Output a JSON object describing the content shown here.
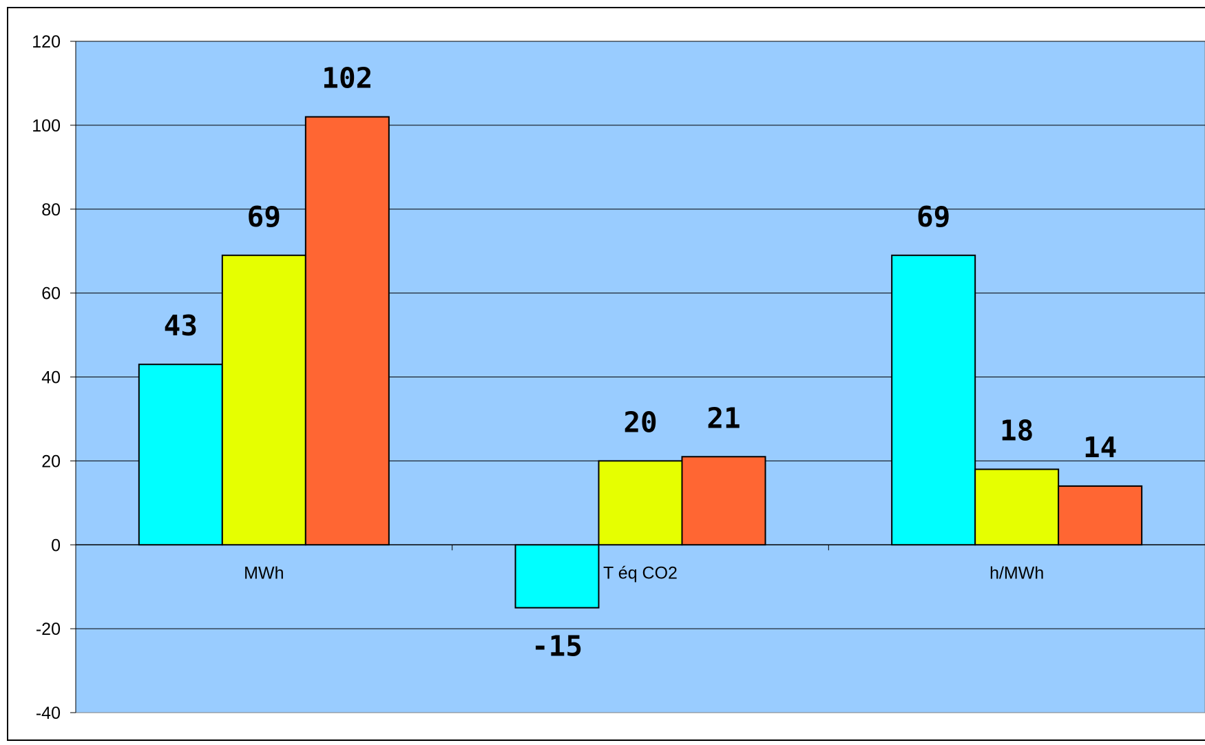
{
  "chart_data": {
    "type": "bar",
    "title": "",
    "xlabel": "",
    "ylabel": "",
    "categories": [
      "MWh",
      "T éq CO2",
      "h/MWh"
    ],
    "series": [
      {
        "values": [
          43,
          -15,
          69
        ],
        "color": "#00FFFF"
      },
      {
        "values": [
          69,
          20,
          18
        ],
        "color": "#E6FF00"
      },
      {
        "values": [
          102,
          21,
          14
        ],
        "color": "#FF6633"
      }
    ],
    "data_labels": [
      [
        "43",
        "-15",
        "69"
      ],
      [
        "69",
        "20",
        "18"
      ],
      [
        "102",
        "21",
        "14"
      ]
    ],
    "ylim": [
      -40,
      120
    ],
    "yticks": [
      "120",
      "100",
      "80",
      "60",
      "40",
      "20",
      "0",
      "-20",
      "-40"
    ],
    "grid": true,
    "legend": "none",
    "colors": {
      "plot_background": "#99CCFF",
      "page_background": "#FFFFFF",
      "gridline": "#000000",
      "bar_outline": "#000000"
    }
  }
}
